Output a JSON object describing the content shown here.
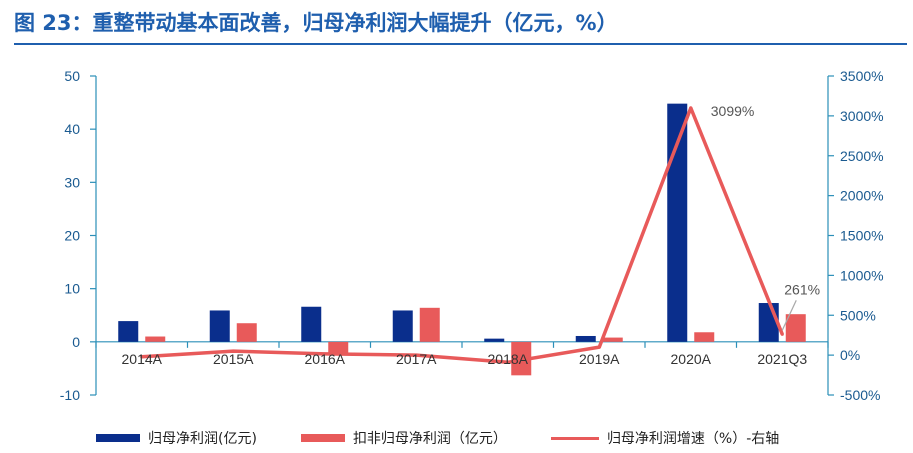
{
  "title": "图 23：重整带动基本面改善，归母净利润大幅提升（亿元，%）",
  "colors": {
    "title": "#1f5fae",
    "bar1": "#0a2e8c",
    "bar2": "#e85a5a",
    "line": "#e85a5a",
    "axis": "#2b8fb8",
    "tick": "#1a5a90"
  },
  "chart_data": {
    "type": "bar",
    "categories": [
      "2014A",
      "2015A",
      "2016A",
      "2017A",
      "2018A",
      "2019A",
      "2020A",
      "2021Q3"
    ],
    "series": [
      {
        "name": "归母净利润(亿元)",
        "axis": "left",
        "kind": "bar",
        "values": [
          3.9,
          5.9,
          6.6,
          5.9,
          0.6,
          1.1,
          44.8,
          7.3
        ]
      },
      {
        "name": "扣非归母净利润（亿元）",
        "axis": "left",
        "kind": "bar",
        "values": [
          1.0,
          3.5,
          -2.2,
          6.4,
          -6.3,
          0.8,
          1.8,
          5.2
        ]
      },
      {
        "name": "归母净利润增速（%）-右轴",
        "axis": "right",
        "kind": "line",
        "values": [
          -20,
          50,
          15,
          0,
          -90,
          100,
          3099,
          261
        ]
      }
    ],
    "left_axis": {
      "ylim": [
        -10,
        50
      ],
      "ticks": [
        "-10",
        "0",
        "10",
        "20",
        "30",
        "40",
        "50"
      ]
    },
    "right_axis": {
      "ylim": [
        -500,
        3500
      ],
      "ticks": [
        "-500%",
        "0%",
        "500%",
        "1000%",
        "1500%",
        "2000%",
        "2500%",
        "3000%",
        "3500%"
      ]
    },
    "annotations": [
      {
        "label": "3099%",
        "category": "2020A"
      },
      {
        "label": "261%",
        "category": "2021Q3"
      }
    ]
  }
}
